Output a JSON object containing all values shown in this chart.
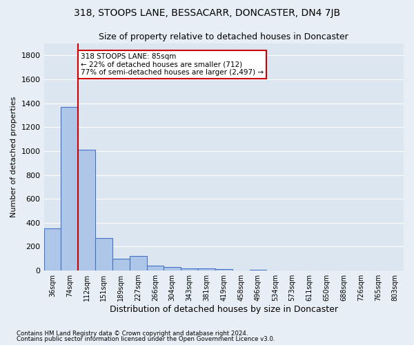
{
  "title": "318, STOOPS LANE, BESSACARR, DONCASTER, DN4 7JB",
  "subtitle": "Size of property relative to detached houses in Doncaster",
  "xlabel": "Distribution of detached houses by size in Doncaster",
  "ylabel": "Number of detached properties",
  "footnote1": "Contains HM Land Registry data © Crown copyright and database right 2024.",
  "footnote2": "Contains public sector information licensed under the Open Government Licence v3.0.",
  "categories": [
    "36sqm",
    "74sqm",
    "112sqm",
    "151sqm",
    "189sqm",
    "227sqm",
    "266sqm",
    "304sqm",
    "343sqm",
    "381sqm",
    "419sqm",
    "458sqm",
    "496sqm",
    "534sqm",
    "573sqm",
    "611sqm",
    "650sqm",
    "688sqm",
    "726sqm",
    "765sqm",
    "803sqm"
  ],
  "values": [
    350,
    1370,
    1010,
    270,
    100,
    120,
    40,
    30,
    20,
    15,
    10,
    0,
    5,
    0,
    0,
    0,
    0,
    0,
    0,
    0,
    0
  ],
  "bar_color": "#aec6e8",
  "bar_edge_color": "#4472c4",
  "property_line_x": 1.5,
  "annotation_text": "318 STOOPS LANE: 85sqm\n← 22% of detached houses are smaller (712)\n77% of semi-detached houses are larger (2,497) →",
  "annotation_box_color": "#ffffff",
  "annotation_box_edge": "#cc0000",
  "vline_color": "#cc0000",
  "ylim": [
    0,
    1900
  ],
  "yticks": [
    0,
    200,
    400,
    600,
    800,
    1000,
    1200,
    1400,
    1600,
    1800
  ],
  "background_color": "#e8eef5",
  "plot_background": "#dce6f0",
  "grid_color": "#ffffff",
  "title_fontsize": 10,
  "subtitle_fontsize": 9
}
